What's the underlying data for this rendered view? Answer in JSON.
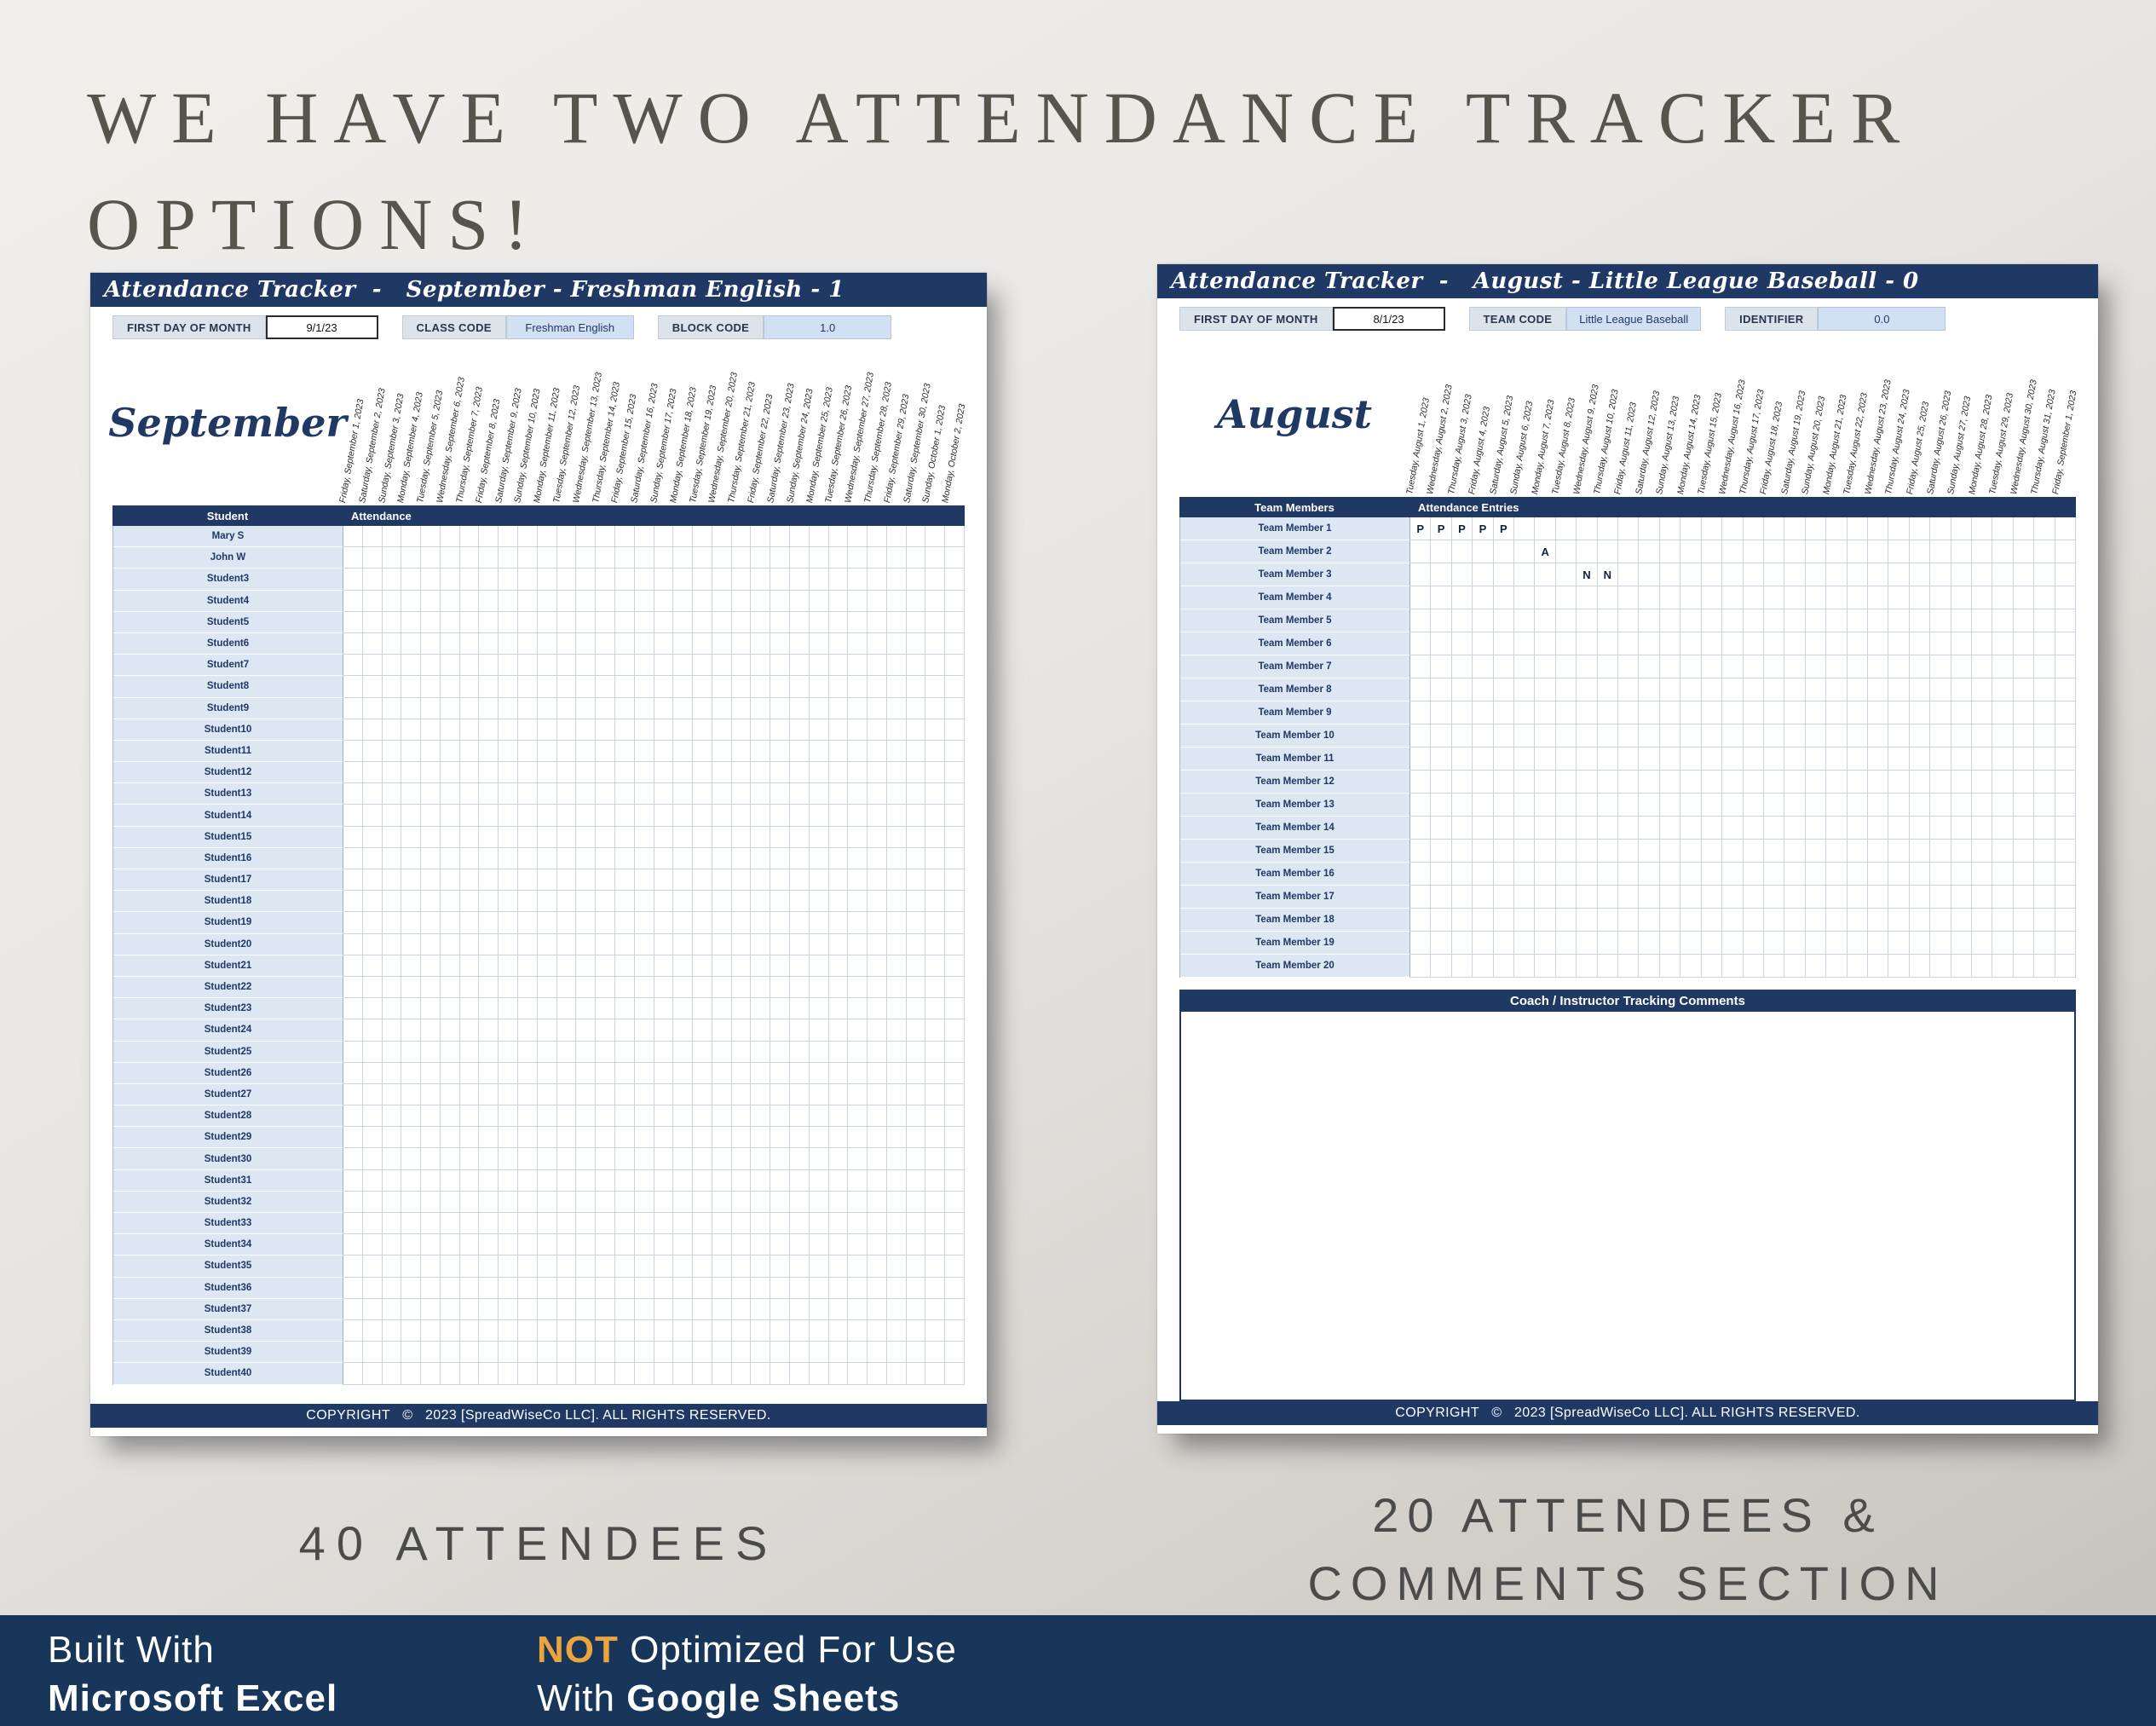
{
  "title": {
    "line1": "WE HAVE TWO ATTENDANCE TRACKER",
    "line2": "OPTIONS!"
  },
  "sheets": {
    "left": {
      "titlebar": "Attendance Tracker  -   September - Freshman English - 1",
      "fields": [
        {
          "label": "FIRST DAY OF MONTH",
          "value": "9/1/23",
          "style": "date"
        },
        {
          "label": "CLASS CODE",
          "value": "Freshman English",
          "style": "code"
        },
        {
          "label": "BLOCK CODE",
          "value": "1.0",
          "style": "code"
        }
      ],
      "month": "September",
      "header": {
        "name_col": "Student",
        "entries_col": "Attendance"
      },
      "dates": [
        "Friday, September 1, 2023",
        "Saturday, September 2, 2023",
        "Sunday, September 3, 2023",
        "Monday, September 4, 2023",
        "Tuesday, September 5, 2023",
        "Wednesday, September 6, 2023",
        "Thursday, September 7, 2023",
        "Friday, September 8, 2023",
        "Saturday, September 9, 2023",
        "Sunday, September 10, 2023",
        "Monday, September 11, 2023",
        "Tuesday, September 12, 2023",
        "Wednesday, September 13, 2023",
        "Thursday, September 14, 2023",
        "Friday, September 15, 2023",
        "Saturday, September 16, 2023",
        "Sunday, September 17, 2023",
        "Monday, September 18, 2023",
        "Tuesday, September 19, 2023",
        "Wednesday, September 20, 2023",
        "Thursday, September 21, 2023",
        "Friday, September 22, 2023",
        "Saturday, September 23, 2023",
        "Sunday, September 24, 2023",
        "Monday, September 25, 2023",
        "Tuesday, September 26, 2023",
        "Wednesday, September 27, 2023",
        "Thursday, September 28, 2023",
        "Friday, September 29, 2023",
        "Saturday, September 30, 2023",
        "Sunday, October 1, 2023",
        "Monday, October 2, 2023"
      ],
      "rows": [
        "Mary S",
        "John W",
        "Student3",
        "Student4",
        "Student5",
        "Student6",
        "Student7",
        "Student8",
        "Student9",
        "Student10",
        "Student11",
        "Student12",
        "Student13",
        "Student14",
        "Student15",
        "Student16",
        "Student17",
        "Student18",
        "Student19",
        "Student20",
        "Student21",
        "Student22",
        "Student23",
        "Student24",
        "Student25",
        "Student26",
        "Student27",
        "Student28",
        "Student29",
        "Student30",
        "Student31",
        "Student32",
        "Student33",
        "Student34",
        "Student35",
        "Student36",
        "Student37",
        "Student38",
        "Student39",
        "Student40"
      ],
      "entries": [],
      "footer": "COPYRIGHT   ©   2023 [SpreadWiseCo LLC]. ALL RIGHTS RESERVED."
    },
    "right": {
      "titlebar": "Attendance Tracker  -   August - Little League Baseball - 0",
      "fields": [
        {
          "label": "FIRST DAY OF MONTH",
          "value": "8/1/23",
          "style": "date"
        },
        {
          "label": "TEAM CODE",
          "value": "Little League Baseball",
          "style": "code"
        },
        {
          "label": "IDENTIFIER",
          "value": "0.0",
          "style": "code"
        }
      ],
      "month": "August",
      "header": {
        "name_col": "Team Members",
        "entries_col": "Attendance Entries"
      },
      "dates": [
        "Tuesday, August 1, 2023",
        "Wednesday, August 2, 2023",
        "Thursday, August 3, 2023",
        "Friday, August 4, 2023",
        "Saturday, August 5, 2023",
        "Sunday, August 6, 2023",
        "Monday, August 7, 2023",
        "Tuesday, August 8, 2023",
        "Wednesday, August 9, 2023",
        "Thursday, August 10, 2023",
        "Friday, August 11, 2023",
        "Saturday, August 12, 2023",
        "Sunday, August 13, 2023",
        "Monday, August 14, 2023",
        "Tuesday, August 15, 2023",
        "Wednesday, August 16, 2023",
        "Thursday, August 17, 2023",
        "Friday, August 18, 2023",
        "Saturday, August 19, 2023",
        "Sunday, August 20, 2023",
        "Monday, August 21, 2023",
        "Tuesday, August 22, 2023",
        "Wednesday, August 23, 2023",
        "Thursday, August 24, 2023",
        "Friday, August 25, 2023",
        "Saturday, August 26, 2023",
        "Sunday, August 27, 2023",
        "Monday, August 28, 2023",
        "Tuesday, August 29, 2023",
        "Wednesday, August 30, 2023",
        "Thursday, August 31, 2023",
        "Friday, September 1, 2023"
      ],
      "rows": [
        "Team Member 1",
        "Team Member 2",
        "Team Member 3",
        "Team Member 4",
        "Team Member 5",
        "Team Member 6",
        "Team Member 7",
        "Team Member 8",
        "Team Member 9",
        "Team Member 10",
        "Team Member 11",
        "Team Member 12",
        "Team Member 13",
        "Team Member 14",
        "Team Member 15",
        "Team Member 16",
        "Team Member 17",
        "Team Member 18",
        "Team Member 19",
        "Team Member 20"
      ],
      "entries": [
        {
          "row": 0,
          "col": 0,
          "value": "P"
        },
        {
          "row": 0,
          "col": 1,
          "value": "P"
        },
        {
          "row": 0,
          "col": 2,
          "value": "P"
        },
        {
          "row": 0,
          "col": 3,
          "value": "P"
        },
        {
          "row": 0,
          "col": 4,
          "value": "P"
        },
        {
          "row": 1,
          "col": 6,
          "value": "A"
        },
        {
          "row": 2,
          "col": 8,
          "value": "N"
        },
        {
          "row": 2,
          "col": 9,
          "value": "N"
        }
      ],
      "comments_title": "Coach / Instructor Tracking Comments",
      "footer": "COPYRIGHT   ©   2023 [SpreadWiseCo LLC]. ALL RIGHTS RESERVED."
    }
  },
  "captions": {
    "left": "40 ATTENDEES",
    "right_line1": "20 ATTENDEES &",
    "right_line2": "COMMENTS SECTION"
  },
  "bottom_bar": {
    "left_line1": "Built With",
    "left_line2": "Microsoft Excel",
    "right_highlight": "NOT",
    "right_line1_rest": " Optimized For Use",
    "right_line2_prefix": "With ",
    "right_line2_bold": "Google Sheets"
  },
  "colors": {
    "navy": "#1f3864",
    "footer_navy": "#17365a",
    "accent_orange": "#eca43f",
    "light_blue_fill": "#dde6f3"
  }
}
